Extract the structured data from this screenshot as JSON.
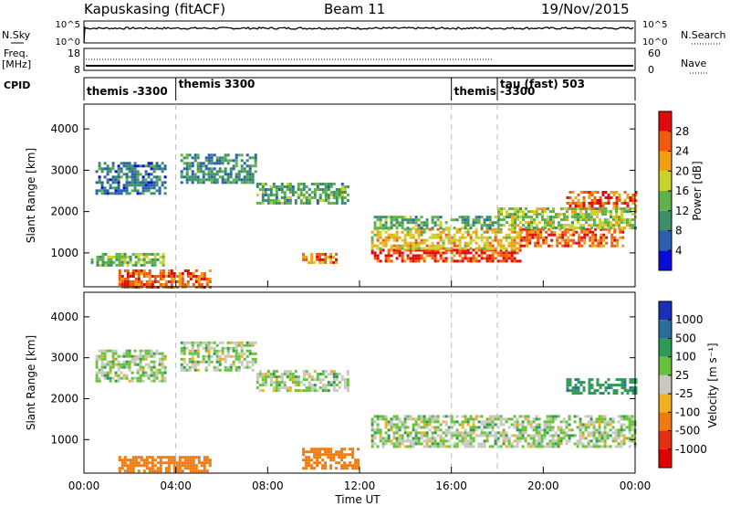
{
  "header": {
    "title": "Kapuskasing (fitACF)",
    "beam": "Beam 11",
    "date": "19/Nov/2015"
  },
  "top_panels": {
    "nsky": {
      "label": "N.Sky",
      "tick_top": "10^5",
      "tick_bottom": "10^0",
      "right_label": "N.Search",
      "right_top": "10^5",
      "right_bottom": "10^0"
    },
    "freq": {
      "label_line1": "Freq.",
      "label_line2": "[MHz]",
      "tick_top": "18",
      "tick_bottom": "8",
      "right_label": "Nave",
      "right_top": "60",
      "right_bottom": "0"
    },
    "cpid": {
      "label": "CPID",
      "segments": [
        {
          "name": "themis -3300",
          "start_h": 0
        },
        {
          "name": "themis 3300",
          "start_h": 4
        },
        {
          "name": "themis -3300",
          "start_h": 16
        },
        {
          "name": "tau (fast) 503",
          "start_h": 18
        }
      ]
    }
  },
  "axis": {
    "xlabel": "Time UT",
    "xticks": [
      "00:00",
      "04:00",
      "08:00",
      "12:00",
      "16:00",
      "20:00",
      "00:00"
    ],
    "ylabel": "Slant Range [km]",
    "yticks": [
      "1000",
      "2000",
      "3000",
      "4000"
    ]
  },
  "power_scale": {
    "label": "Power [dB]",
    "ticks": [
      "4",
      "8",
      "12",
      "16",
      "20",
      "24",
      "28"
    ],
    "colors": [
      "#0b0bd8",
      "#2a5fae",
      "#3b8f6a",
      "#5fb24a",
      "#c8d22a",
      "#f2a012",
      "#f05a0a",
      "#e00a0a"
    ]
  },
  "velocity_scale": {
    "label": "Velocity [m s⁻¹]",
    "ticks": [
      "1000",
      "500",
      "100",
      "25",
      "-25",
      "-100",
      "-500",
      "-1000"
    ],
    "colors": [
      "#1a2fb5",
      "#2a6e9a",
      "#2f9a55",
      "#66c23a",
      "#c8c8c0",
      "#f0b020",
      "#f07a10",
      "#e23010",
      "#e00000"
    ]
  },
  "chart_data": [
    {
      "type": "heatmap",
      "title": "Power",
      "xlabel": "Time UT",
      "ylabel": "Slant Range [km]",
      "xlim": [
        0,
        24
      ],
      "ylim": [
        180,
        4600
      ],
      "colorbar": "Power [dB]",
      "regions": [
        {
          "t": [
            0.5,
            3.5
          ],
          "r": [
            2450,
            3200
          ],
          "v": 8
        },
        {
          "t": [
            4.2,
            7.5
          ],
          "r": [
            2700,
            3400
          ],
          "v": 10
        },
        {
          "t": [
            7.5,
            11.5
          ],
          "r": [
            2200,
            2700
          ],
          "v": 12
        },
        {
          "t": [
            0.3,
            3.5
          ],
          "r": [
            700,
            1000
          ],
          "v": 14
        },
        {
          "t": [
            1.5,
            5.5
          ],
          "r": [
            200,
            600
          ],
          "v": 26
        },
        {
          "t": [
            9.5,
            11
          ],
          "r": [
            800,
            1000
          ],
          "v": 24
        },
        {
          "t": [
            12.5,
            19
          ],
          "r": [
            800,
            1100
          ],
          "v": 28
        },
        {
          "t": [
            12.5,
            19
          ],
          "r": [
            1100,
            1600
          ],
          "v": 20
        },
        {
          "t": [
            12.5,
            18
          ],
          "r": [
            1600,
            1900
          ],
          "v": 12
        },
        {
          "t": [
            19,
            23.5
          ],
          "r": [
            1200,
            1600
          ],
          "v": 26
        },
        {
          "t": [
            21,
            24
          ],
          "r": [
            2100,
            2500
          ],
          "v": 26
        },
        {
          "t": [
            18,
            24
          ],
          "r": [
            1600,
            2100
          ],
          "v": 16
        }
      ]
    },
    {
      "type": "heatmap",
      "title": "Velocity",
      "xlabel": "Time UT",
      "ylabel": "Slant Range [km]",
      "xlim": [
        0,
        24
      ],
      "ylim": [
        180,
        4600
      ],
      "colorbar": "Velocity [m s⁻¹]",
      "regions": [
        {
          "t": [
            0.5,
            3.5
          ],
          "r": [
            2450,
            3200
          ],
          "v": 0
        },
        {
          "t": [
            4.2,
            7.5
          ],
          "r": [
            2700,
            3400
          ],
          "v": 0
        },
        {
          "t": [
            7.5,
            11.5
          ],
          "r": [
            2200,
            2700
          ],
          "v": 0
        },
        {
          "t": [
            1.5,
            5.5
          ],
          "r": [
            200,
            600
          ],
          "v": -200
        },
        {
          "t": [
            9.5,
            12
          ],
          "r": [
            300,
            800
          ],
          "v": -150
        },
        {
          "t": [
            12.5,
            24
          ],
          "r": [
            800,
            1600
          ],
          "v": 0
        },
        {
          "t": [
            21,
            24
          ],
          "r": [
            2100,
            2500
          ],
          "v": 80
        }
      ]
    }
  ]
}
